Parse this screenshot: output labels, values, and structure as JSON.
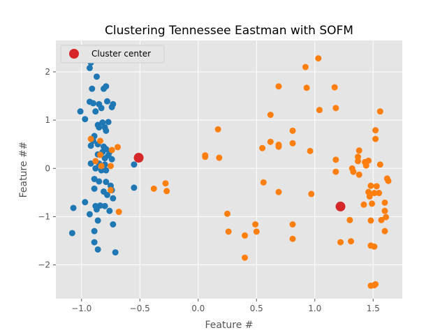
{
  "chart_data": {
    "type": "scatter",
    "title": "Clustering Tennessee Eastman with SOFM",
    "xlabel": "Feature #",
    "ylabel": "Feature ##",
    "xlim": [
      -1.22,
      1.75
    ],
    "ylim": [
      -2.7,
      2.65
    ],
    "xticks": [
      -1.0,
      -0.5,
      0.0,
      0.5,
      1.0,
      1.5
    ],
    "xtick_labels": [
      "−1.0",
      "−0.5",
      "0.0",
      "0.5",
      "1.0",
      "1.5"
    ],
    "yticks": [
      -2,
      -1,
      0,
      1,
      2
    ],
    "ytick_labels": [
      "−2",
      "−1",
      "0",
      "1",
      "2"
    ],
    "grid": true,
    "legend": {
      "position": "top-left",
      "entries": [
        "Cluster center"
      ]
    },
    "colors": {
      "series_a": "#1f77b4",
      "series_b": "#ff7f0e",
      "center": "#d62728",
      "background": "#e5e5e5",
      "grid": "#ffffff"
    },
    "series": [
      {
        "color": "#1f77b4",
        "points": [
          [
            -0.91,
            2.38
          ],
          [
            -0.92,
            2.19
          ],
          [
            -0.93,
            2.08
          ],
          [
            -0.87,
            1.9
          ],
          [
            -0.79,
            1.7
          ],
          [
            -0.81,
            1.65
          ],
          [
            -0.91,
            1.65
          ],
          [
            -1.01,
            1.18
          ],
          [
            -0.97,
            1.02
          ],
          [
            -0.93,
            1.38
          ],
          [
            -0.9,
            1.35
          ],
          [
            -0.85,
            1.33
          ],
          [
            -0.83,
            1.25
          ],
          [
            -0.78,
            1.39
          ],
          [
            -0.73,
            1.33
          ],
          [
            -0.74,
            1.27
          ],
          [
            -0.88,
            1.18
          ],
          [
            -0.86,
            0.9
          ],
          [
            -0.82,
            0.95
          ],
          [
            -0.77,
            0.96
          ],
          [
            -0.85,
            0.85
          ],
          [
            -0.8,
            0.85
          ],
          [
            -0.79,
            0.78
          ],
          [
            -0.89,
            0.67
          ],
          [
            -0.9,
            0.57
          ],
          [
            -0.92,
            0.47
          ],
          [
            -0.86,
            0.5
          ],
          [
            -0.81,
            0.45
          ],
          [
            -0.79,
            0.4
          ],
          [
            -0.82,
            0.34
          ],
          [
            -0.76,
            0.34
          ],
          [
            -0.86,
            0.29
          ],
          [
            -0.8,
            0.21
          ],
          [
            -0.74,
            0.19
          ],
          [
            -0.77,
            0.27
          ],
          [
            -0.92,
            0.1
          ],
          [
            -0.85,
            0.1
          ],
          [
            -0.8,
            0.08
          ],
          [
            -0.88,
            0.0
          ],
          [
            -0.83,
            -0.04
          ],
          [
            -0.79,
            -0.04
          ],
          [
            -0.89,
            -0.22
          ],
          [
            -0.85,
            -0.27
          ],
          [
            -0.79,
            -0.28
          ],
          [
            -0.75,
            -0.36
          ],
          [
            -0.89,
            -0.42
          ],
          [
            -0.81,
            -0.48
          ],
          [
            -0.74,
            -0.45
          ],
          [
            -0.78,
            -0.55
          ],
          [
            -0.73,
            -0.62
          ],
          [
            -0.97,
            -0.7
          ],
          [
            -0.88,
            -0.78
          ],
          [
            -0.84,
            -0.77
          ],
          [
            -0.8,
            -0.78
          ],
          [
            -0.87,
            -0.85
          ],
          [
            -0.76,
            -0.88
          ],
          [
            -0.93,
            -0.95
          ],
          [
            -0.86,
            -1.08
          ],
          [
            -0.73,
            -1.16
          ],
          [
            -0.89,
            -1.3
          ],
          [
            -0.89,
            -1.53
          ],
          [
            -0.86,
            -1.68
          ],
          [
            -0.71,
            -1.74
          ],
          [
            -1.07,
            -0.82
          ],
          [
            -1.08,
            -1.34
          ],
          [
            -0.55,
            0.08
          ],
          [
            -0.55,
            -0.4
          ]
        ]
      },
      {
        "color": "#ff7f0e",
        "points": [
          [
            -0.92,
            0.61
          ],
          [
            -0.84,
            0.57
          ],
          [
            -0.74,
            0.38
          ],
          [
            -0.69,
            0.44
          ],
          [
            -0.84,
            0.28
          ],
          [
            -0.88,
            0.15
          ],
          [
            -0.83,
            0.05
          ],
          [
            -0.75,
            0.05
          ],
          [
            -0.75,
            -0.45
          ],
          [
            -0.68,
            -0.9
          ],
          [
            -0.38,
            -0.42
          ],
          [
            -0.28,
            -0.31
          ],
          [
            -0.27,
            -0.47
          ],
          [
            0.06,
            0.27
          ],
          [
            0.06,
            0.24
          ],
          [
            0.17,
            0.81
          ],
          [
            0.18,
            0.22
          ],
          [
            0.25,
            -0.94
          ],
          [
            0.26,
            -1.31
          ],
          [
            0.4,
            -1.39
          ],
          [
            0.4,
            -1.85
          ],
          [
            0.49,
            -1.16
          ],
          [
            0.5,
            -1.31
          ],
          [
            0.55,
            0.42
          ],
          [
            0.56,
            -0.29
          ],
          [
            0.62,
            1.11
          ],
          [
            0.62,
            0.55
          ],
          [
            0.69,
            1.7
          ],
          [
            0.69,
            0.49
          ],
          [
            0.69,
            0.45
          ],
          [
            0.69,
            -0.49
          ],
          [
            0.81,
            0.78
          ],
          [
            0.81,
            0.52
          ],
          [
            0.81,
            -1.16
          ],
          [
            0.81,
            -1.46
          ],
          [
            0.92,
            2.1
          ],
          [
            0.93,
            1.67
          ],
          [
            0.96,
            0.36
          ],
          [
            0.97,
            -0.53
          ],
          [
            1.03,
            2.28
          ],
          [
            1.04,
            1.21
          ],
          [
            1.17,
            1.68
          ],
          [
            1.18,
            1.25
          ],
          [
            1.18,
            0.18
          ],
          [
            1.18,
            -0.07
          ],
          [
            1.22,
            -1.53
          ],
          [
            1.3,
            -1.07
          ],
          [
            1.31,
            -1.51
          ],
          [
            1.32,
            0.0
          ],
          [
            1.33,
            -0.07
          ],
          [
            1.37,
            0.24
          ],
          [
            1.37,
            0.15
          ],
          [
            1.38,
            0.37
          ],
          [
            1.38,
            -0.13
          ],
          [
            1.42,
            -0.75
          ],
          [
            1.43,
            0.13
          ],
          [
            1.44,
            0.06
          ],
          [
            1.46,
            0.16
          ],
          [
            1.46,
            -0.49
          ],
          [
            1.47,
            -0.58
          ],
          [
            1.48,
            -0.36
          ],
          [
            1.48,
            -1.08
          ],
          [
            1.49,
            -0.73
          ],
          [
            1.51,
            -0.51
          ],
          [
            1.52,
            0.79
          ],
          [
            1.52,
            0.61
          ],
          [
            1.53,
            -0.37
          ],
          [
            1.55,
            -0.51
          ],
          [
            1.56,
            1.18
          ],
          [
            1.56,
            0.08
          ],
          [
            1.57,
            -1.07
          ],
          [
            1.6,
            -0.71
          ],
          [
            1.6,
            -0.88
          ],
          [
            1.61,
            -1.01
          ],
          [
            1.6,
            -1.3
          ],
          [
            1.62,
            -0.21
          ],
          [
            1.63,
            -0.26
          ],
          [
            1.48,
            -1.6
          ],
          [
            1.51,
            -1.62
          ],
          [
            1.48,
            -2.43
          ],
          [
            1.51,
            -2.42
          ],
          [
            1.52,
            -2.4
          ]
        ]
      }
    ],
    "cluster_centers": [
      [
        -0.51,
        0.22
      ],
      [
        1.22,
        -0.79
      ]
    ]
  }
}
